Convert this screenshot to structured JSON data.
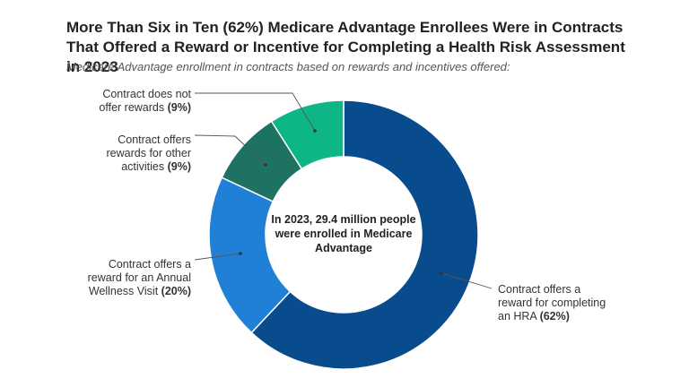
{
  "chart_data": {
    "type": "pie",
    "title": "More Than Six in Ten (62%) Medicare Advantage Enrollees Were in Contracts That Offered a Reward or Incentive for Completing a Health Risk Assessment in 2023",
    "subtitle": "Medicare Advantage enrollment in contracts based on rewards and incentives offered:",
    "center_label": [
      "In 2023, 29.4 million people",
      "were enrolled in Medicare",
      "Advantage"
    ],
    "slices": [
      {
        "label_lines": [
          "Contract offers a",
          "reward for completing",
          "an HRA"
        ],
        "pct_label": "(62%)",
        "value": 62,
        "color": "#084c8d"
      },
      {
        "label_lines": [
          "Contract offers a",
          "reward for an Annual",
          "Wellness Visit"
        ],
        "pct_label": "(20%)",
        "value": 20,
        "color": "#1f80d6"
      },
      {
        "label_lines": [
          "Contract offers",
          "rewards for other",
          "activities"
        ],
        "pct_label": "(9%)",
        "value": 9,
        "color": "#1d7262"
      },
      {
        "label_lines": [
          "Contract does not",
          "offer rewards"
        ],
        "pct_label": "(9%)",
        "value": 9,
        "color": "#0db587"
      }
    ]
  }
}
